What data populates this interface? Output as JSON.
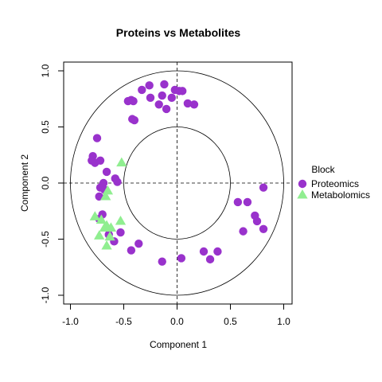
{
  "chart_data": {
    "type": "scatter",
    "title": "Proteins vs Metabolites",
    "xlabel": "Component 1",
    "ylabel": "Component 2",
    "xlim": [
      -1.0,
      1.0
    ],
    "ylim": [
      -1.0,
      1.0
    ],
    "x_ticks": [
      "-1.0",
      "-0.5",
      "0.0",
      "0.5",
      "1.0"
    ],
    "x_tick_values": [
      -1.0,
      -0.5,
      0.0,
      0.5,
      1.0
    ],
    "y_ticks": [
      "-1.0",
      "-0.5",
      "0.0",
      "0.5",
      "1.0"
    ],
    "y_tick_values": [
      -1.0,
      -0.5,
      0.0,
      0.5,
      1.0
    ],
    "reference_circles": [
      0.5,
      1.0
    ],
    "reference_lines": {
      "x": 0,
      "y": 0
    },
    "legend": {
      "title": "Block",
      "position": "right"
    },
    "series": [
      {
        "name": "Proteomics",
        "color": "#9932CC",
        "marker": "circle",
        "points": [
          [
            -0.75,
            0.4
          ],
          [
            -0.79,
            0.24
          ],
          [
            -0.8,
            0.2
          ],
          [
            -0.77,
            0.18
          ],
          [
            -0.72,
            0.2
          ],
          [
            -0.66,
            0.1
          ],
          [
            -0.58,
            0.04
          ],
          [
            -0.56,
            0.01
          ],
          [
            -0.69,
            0.0
          ],
          [
            -0.72,
            -0.04
          ],
          [
            -0.68,
            -0.06
          ],
          [
            -0.73,
            -0.12
          ],
          [
            -0.7,
            -0.28
          ],
          [
            -0.73,
            -0.32
          ],
          [
            -0.64,
            -0.46
          ],
          [
            -0.59,
            -0.52
          ],
          [
            -0.53,
            -0.44
          ],
          [
            -0.36,
            -0.54
          ],
          [
            -0.43,
            -0.6
          ],
          [
            -0.14,
            -0.7
          ],
          [
            0.04,
            -0.67
          ],
          [
            0.25,
            -0.61
          ],
          [
            0.31,
            -0.68
          ],
          [
            0.38,
            -0.61
          ],
          [
            0.57,
            -0.17
          ],
          [
            0.66,
            -0.17
          ],
          [
            0.73,
            -0.29
          ],
          [
            0.75,
            -0.34
          ],
          [
            0.62,
            -0.43
          ],
          [
            0.81,
            -0.41
          ],
          [
            0.81,
            -0.04
          ],
          [
            -0.46,
            0.73
          ],
          [
            -0.41,
            0.73
          ],
          [
            -0.43,
            0.74
          ],
          [
            -0.33,
            0.83
          ],
          [
            -0.26,
            0.87
          ],
          [
            -0.25,
            0.76
          ],
          [
            -0.17,
            0.7
          ],
          [
            -0.14,
            0.78
          ],
          [
            -0.12,
            0.88
          ],
          [
            -0.1,
            0.66
          ],
          [
            -0.05,
            0.76
          ],
          [
            -0.02,
            0.83
          ],
          [
            0.02,
            0.82
          ],
          [
            0.05,
            0.82
          ],
          [
            0.1,
            0.71
          ],
          [
            0.16,
            0.7
          ],
          [
            -0.42,
            0.57
          ],
          [
            -0.4,
            0.56
          ]
        ]
      },
      {
        "name": "Metabolomics",
        "color": "#90EE90",
        "marker": "triangle",
        "points": [
          [
            -0.52,
            0.18
          ],
          [
            -0.65,
            -0.07
          ],
          [
            -0.67,
            -0.12
          ],
          [
            -0.77,
            -0.3
          ],
          [
            -0.71,
            -0.33
          ],
          [
            -0.68,
            -0.4
          ],
          [
            -0.66,
            -0.38
          ],
          [
            -0.73,
            -0.47
          ],
          [
            -0.63,
            -0.48
          ],
          [
            -0.53,
            -0.34
          ],
          [
            -0.62,
            -0.4
          ],
          [
            -0.66,
            -0.56
          ]
        ]
      }
    ]
  }
}
